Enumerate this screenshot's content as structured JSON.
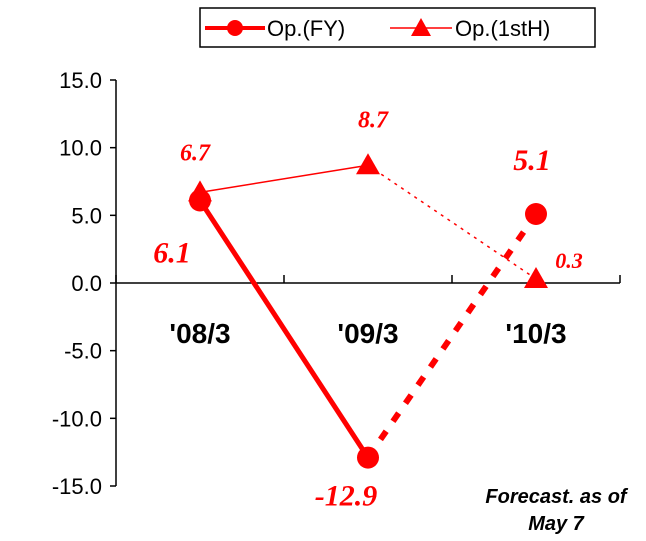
{
  "chart_data": {
    "type": "line",
    "categories": [
      "'08/3",
      "'09/3",
      "'10/3"
    ],
    "series": [
      {
        "name": "Op.(FY)",
        "marker": "circle",
        "values": [
          6.1,
          -12.9,
          5.1
        ],
        "labels": [
          "6.1",
          "-12.9",
          "5.1"
        ],
        "forecast_from_index": 1
      },
      {
        "name": "Op.(1stH)",
        "marker": "triangle",
        "values": [
          6.7,
          8.7,
          0.3
        ],
        "labels": [
          "6.7",
          "8.7",
          "0.3"
        ],
        "forecast_from_index": 1
      }
    ],
    "ylim": [
      -15,
      15
    ],
    "yticks": [
      "15.0",
      "10.0",
      "5.0",
      "0.0",
      "-5.0",
      "-10.0",
      "-15.0"
    ],
    "grid": false,
    "legend_position": "top-right",
    "color": "#ff0000"
  },
  "annotation": {
    "line1": "Forecast. as of",
    "line2": "May 7"
  }
}
